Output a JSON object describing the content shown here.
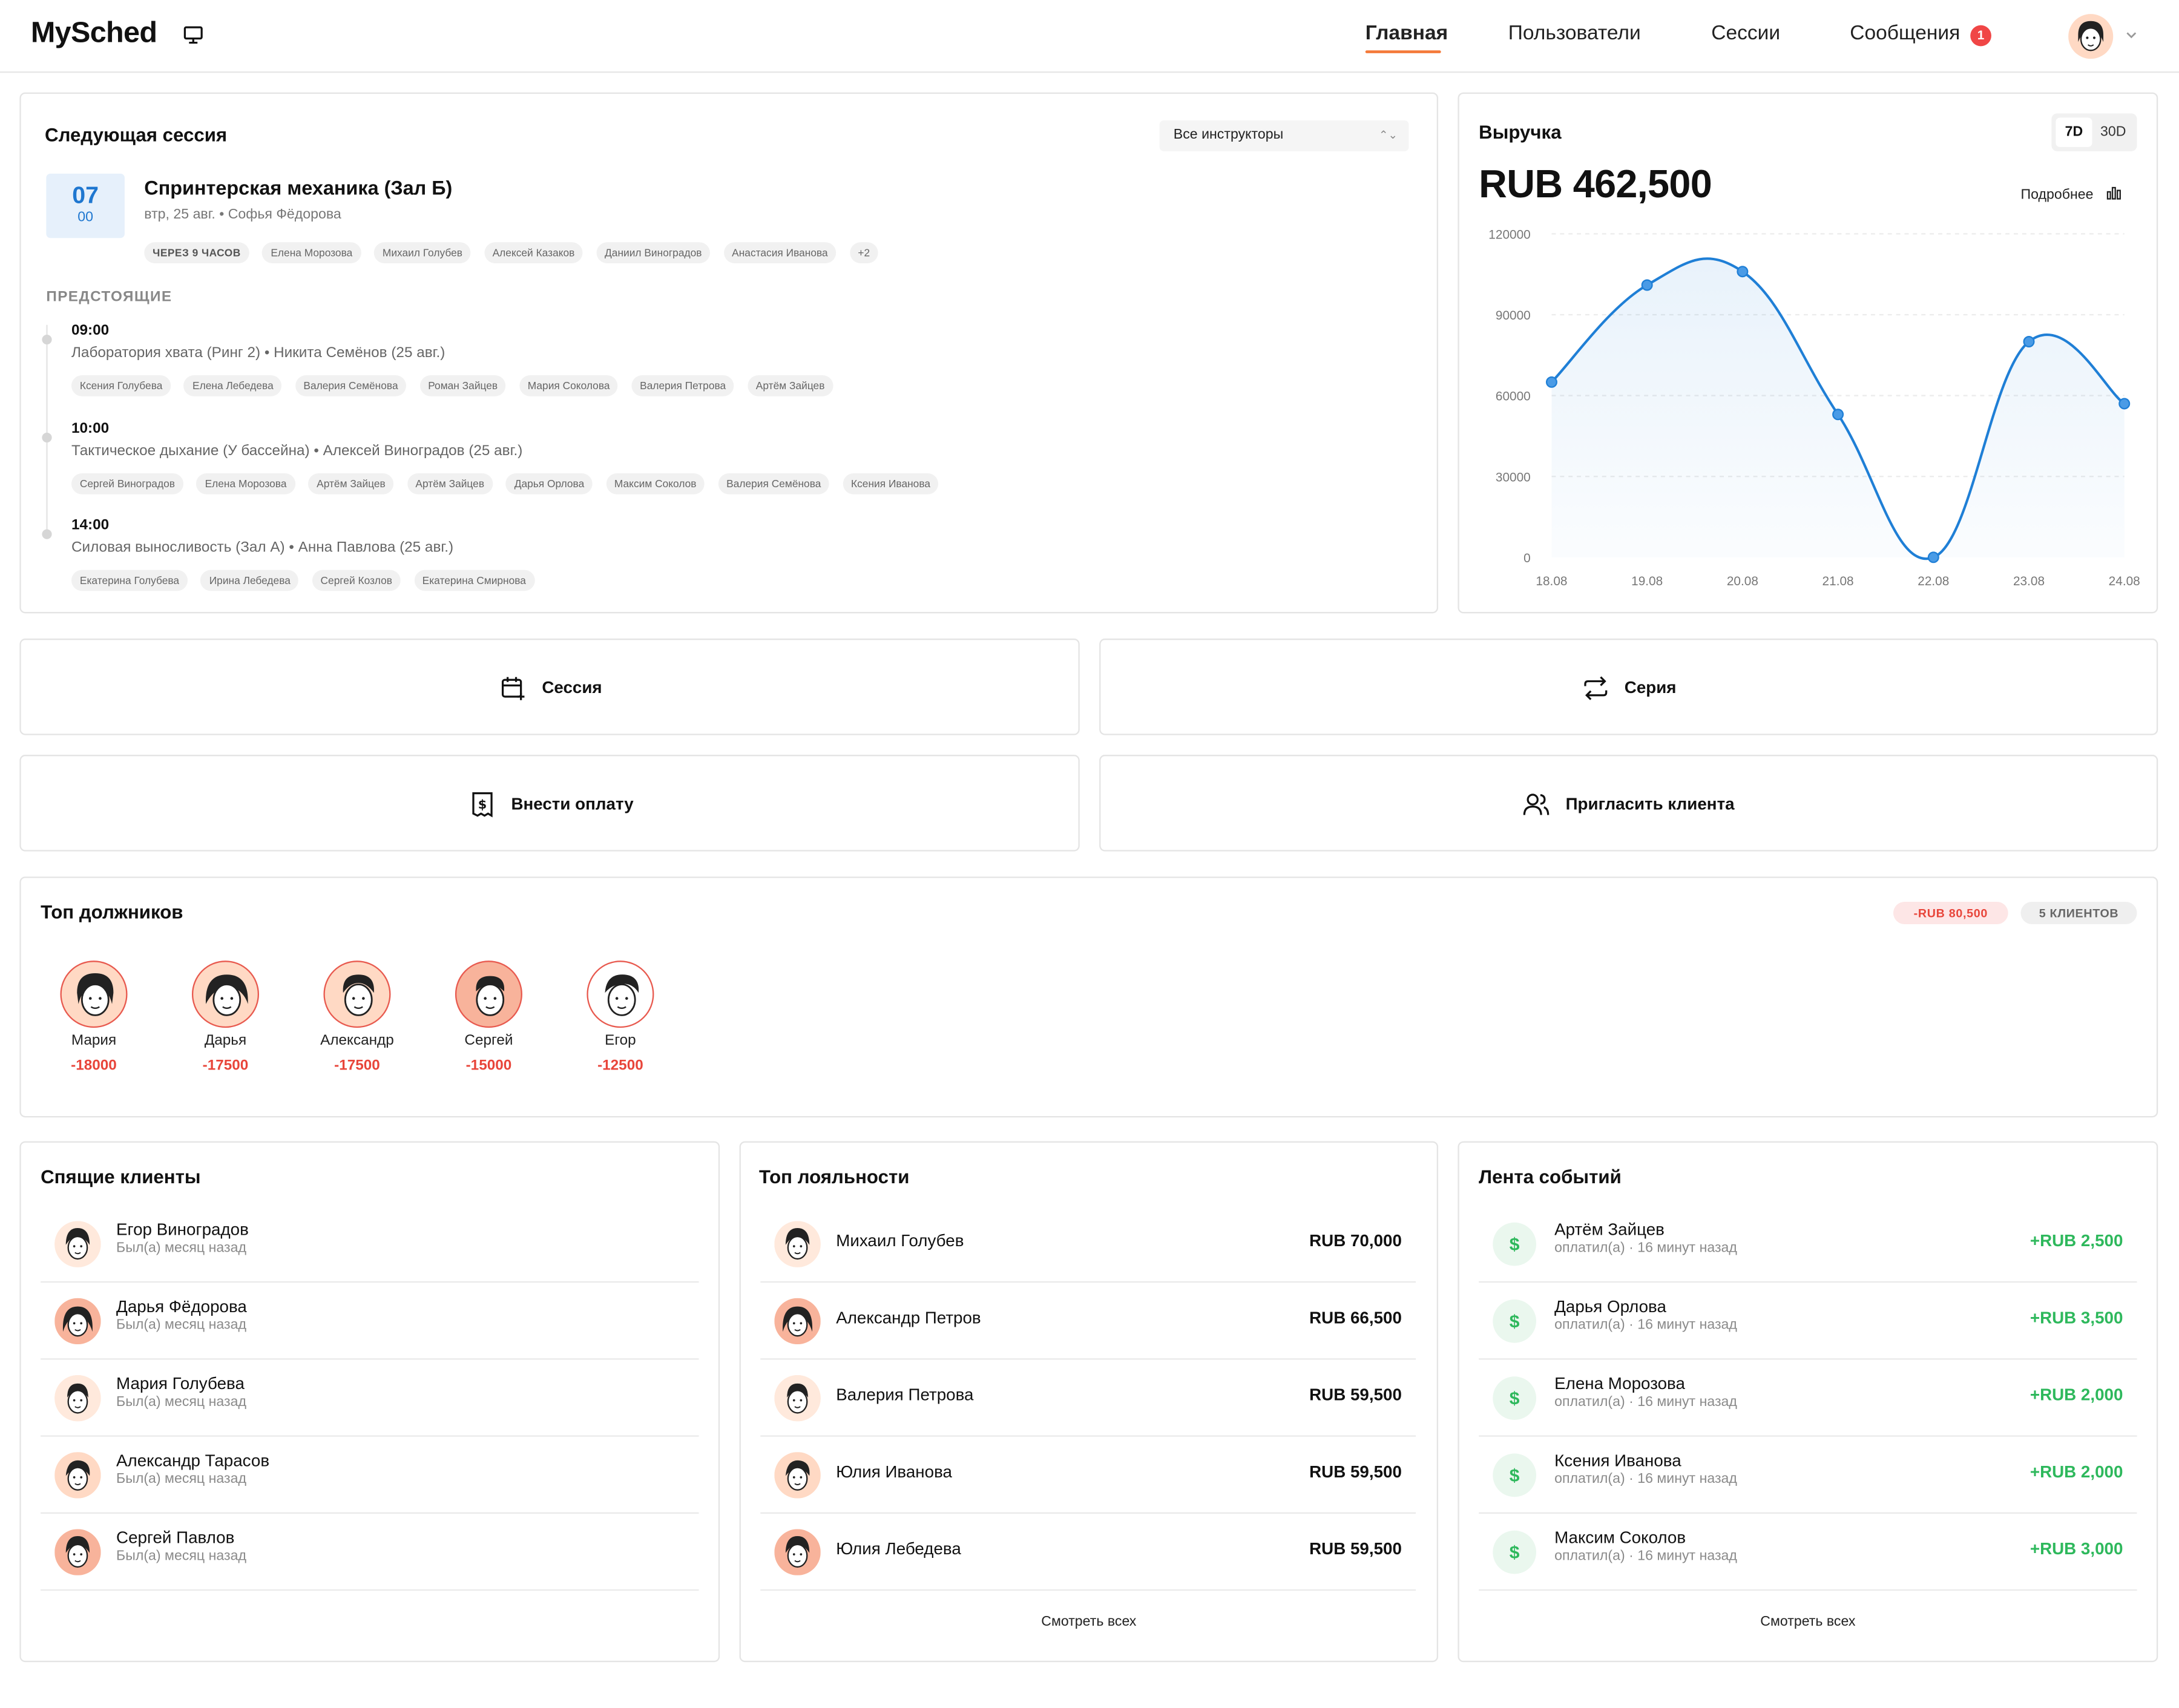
{
  "header": {
    "logo": "MySched",
    "nav": [
      {
        "label": "Главная",
        "active": true
      },
      {
        "label": "Пользователи"
      },
      {
        "label": "Сессии"
      },
      {
        "label": "Сообщения",
        "badge": "1"
      }
    ]
  },
  "next_session": {
    "title": "Следующая сессия",
    "filter": "Все инструкторы",
    "date_day": "07",
    "date_min": "00",
    "name": "Спринтерская механика (Зал Б)",
    "meta": "втр, 25 авг. • Софья Фёдорова",
    "countdown": "ЧЕРЕЗ 9 ЧАСОВ",
    "participants": [
      "Елена Морозова",
      "Михаил Голубев",
      "Алексей Казаков",
      "Даниил Виноградов",
      "Анастасия Иванова",
      "+2"
    ],
    "upcoming_label": "ПРЕДСТОЯЩИЕ",
    "upcoming": [
      {
        "time": "09:00",
        "desc": "Лаборатория хвата (Ринг 2) • Никита Семёнов (25 авг.)",
        "people": [
          "Ксения Голубева",
          "Елена Лебедева",
          "Валерия Семёнова",
          "Роман Зайцев",
          "Мария Соколова",
          "Валерия Петрова",
          "Артём Зайцев"
        ]
      },
      {
        "time": "10:00",
        "desc": "Тактическое дыхание (У бассейна) • Алексей Виноградов (25 авг.)",
        "people": [
          "Сергей Виноградов",
          "Елена Морозова",
          "Артём Зайцев",
          "Артём Зайцев",
          "Дарья Орлова",
          "Максим Соколов",
          "Валерия Семёнова",
          "Ксения Иванова"
        ]
      },
      {
        "time": "14:00",
        "desc": "Силовая выносливость (Зал А) • Анна Павлова (25 авг.)",
        "people": [
          "Екатерина Голубева",
          "Ирина Лебедева",
          "Сергей Козлов",
          "Екатерина Смирнова"
        ]
      }
    ]
  },
  "revenue": {
    "title": "Выручка",
    "range_7d": "7D",
    "range_30d": "30D",
    "total": "RUB 462,500",
    "details": "Подробнее"
  },
  "chart_data": {
    "type": "area",
    "x": [
      "18.08",
      "19.08",
      "20.08",
      "21.08",
      "22.08",
      "23.08",
      "24.08"
    ],
    "values": [
      65000,
      101000,
      106000,
      53000,
      0,
      80000,
      57000
    ],
    "yticks": [
      "0",
      "30000",
      "60000",
      "90000",
      "120000"
    ],
    "ylim": [
      0,
      120000
    ],
    "color": "#1f7fd6",
    "grid": true
  },
  "actions": {
    "session": "Сессия",
    "series": "Серия",
    "payment": "Внести оплату",
    "invite": "Пригласить клиента"
  },
  "debtors": {
    "title": "Топ должников",
    "total": "-RUB 80,500",
    "clients": "5 КЛИЕНТОВ",
    "items": [
      {
        "name": "Мария",
        "amount": "-18000"
      },
      {
        "name": "Дарья",
        "amount": "-17500"
      },
      {
        "name": "Александр",
        "amount": "-17500"
      },
      {
        "name": "Сергей",
        "amount": "-15000"
      },
      {
        "name": "Егор",
        "amount": "-12500"
      }
    ]
  },
  "sleeping": {
    "title": "Спящие клиенты",
    "items": [
      {
        "name": "Егор Виноградов",
        "sub": "Был(а) месяц назад"
      },
      {
        "name": "Дарья Фёдорова",
        "sub": "Был(а) месяц назад"
      },
      {
        "name": "Мария Голубева",
        "sub": "Был(а) месяц назад"
      },
      {
        "name": "Александр Тарасов",
        "sub": "Был(а) месяц назад"
      },
      {
        "name": "Сергей Павлов",
        "sub": "Был(а) месяц назад"
      }
    ]
  },
  "loyalty": {
    "title": "Топ лояльности",
    "see_all": "Смотреть всех",
    "items": [
      {
        "name": "Михаил Голубев",
        "amount": "RUB 70,000"
      },
      {
        "name": "Александр Петров",
        "amount": "RUB 66,500"
      },
      {
        "name": "Валерия Петрова",
        "amount": "RUB 59,500"
      },
      {
        "name": "Юлия Иванова",
        "amount": "RUB 59,500"
      },
      {
        "name": "Юлия Лебедева",
        "amount": "RUB 59,500"
      }
    ]
  },
  "feed": {
    "title": "Лента событий",
    "see_all": "Смотреть всех",
    "items": [
      {
        "name": "Артём Зайцев",
        "sub": "оплатил(а) · 16 минут назад",
        "amount": "+RUB 2,500"
      },
      {
        "name": "Дарья Орлова",
        "sub": "оплатил(а) · 16 минут назад",
        "amount": "+RUB 3,500"
      },
      {
        "name": "Елена Морозова",
        "sub": "оплатил(а) · 16 минут назад",
        "amount": "+RUB 2,000"
      },
      {
        "name": "Ксения Иванова",
        "sub": "оплатил(а) · 16 минут назад",
        "amount": "+RUB 2,000"
      },
      {
        "name": "Максим Соколов",
        "sub": "оплатил(а) · 16 минут назад",
        "amount": "+RUB 3,000"
      }
    ]
  },
  "icons": {
    "money": "$"
  }
}
